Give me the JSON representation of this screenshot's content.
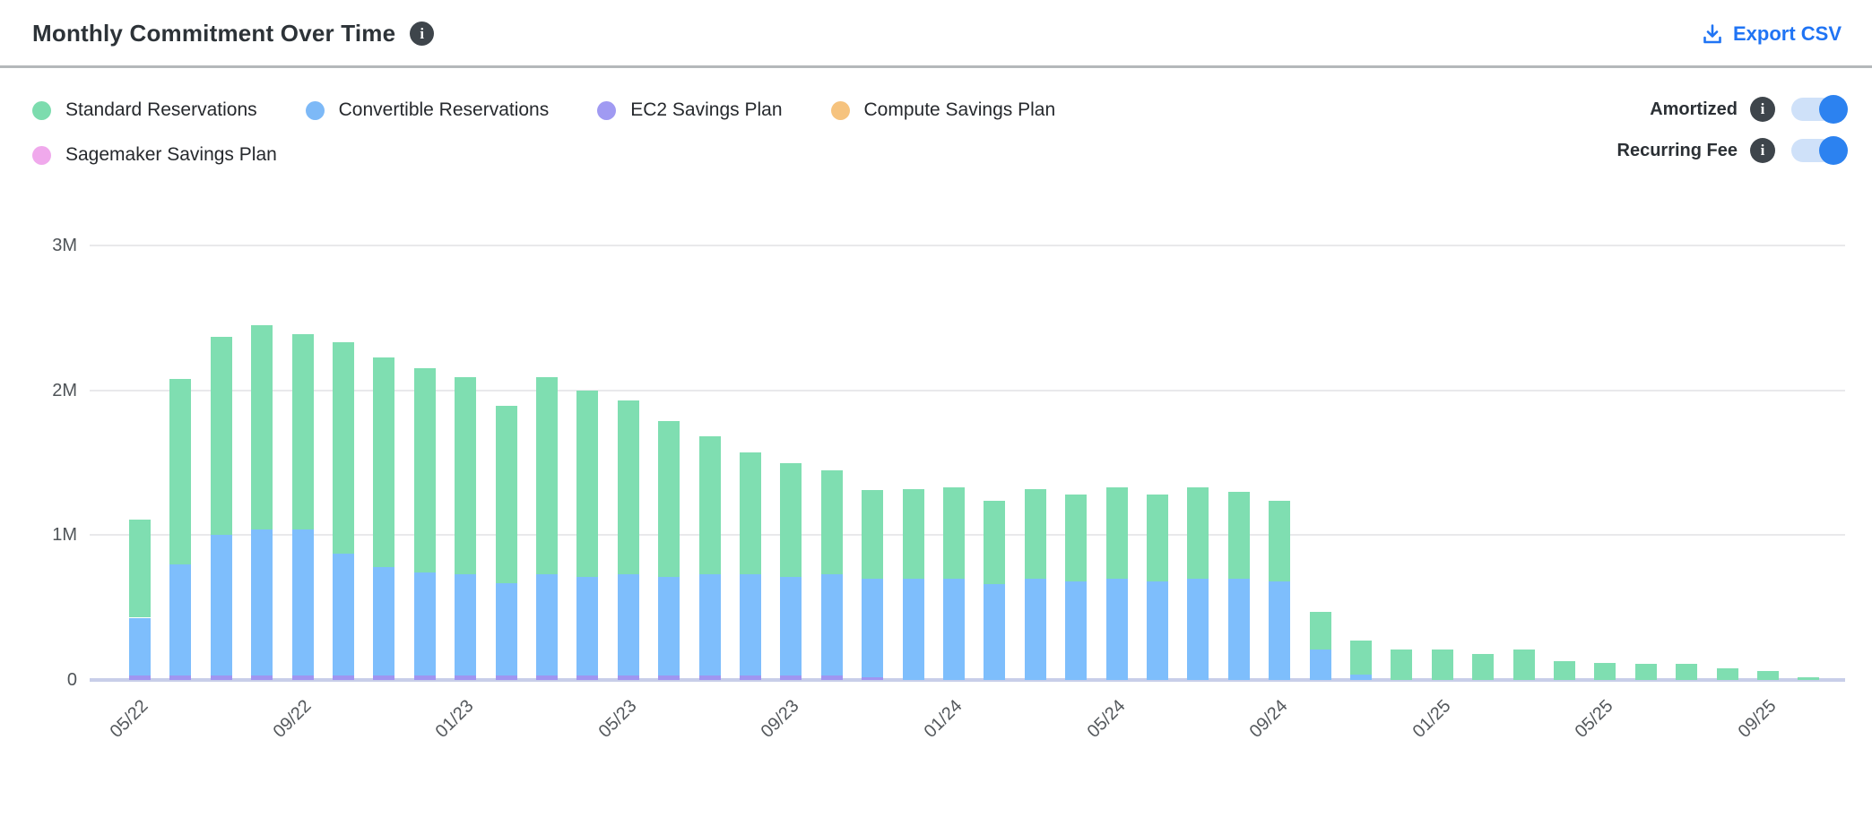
{
  "header": {
    "title": "Monthly Commitment Over Time",
    "export_label": "Export CSV",
    "accent_color": "#2074f4"
  },
  "legend": {
    "items": [
      {
        "id": "standard-reservations",
        "label": "Standard Reservations",
        "color": "#7cdcae"
      },
      {
        "id": "convertible-reservations",
        "label": "Convertible Reservations",
        "color": "#7db9f7"
      },
      {
        "id": "ec2-savings-plan",
        "label": "EC2 Savings Plan",
        "color": "#a09af2"
      },
      {
        "id": "compute-savings-plan",
        "label": "Compute Savings Plan",
        "color": "#f6c37e"
      },
      {
        "id": "sagemaker-savings-plan",
        "label": "Sagemaker Savings Plan",
        "color": "#f0a9ec"
      }
    ]
  },
  "toggles": [
    {
      "id": "amortized",
      "label": "Amortized",
      "on": true
    },
    {
      "id": "recurring-fee",
      "label": "Recurring Fee",
      "on": true
    }
  ],
  "toggle_colors": {
    "track": "#cfe1f9",
    "knob": "#2c82f0"
  },
  "chart_data": {
    "type": "bar",
    "stacked": true,
    "title": "Monthly Commitment Over Time",
    "xlabel": "",
    "ylabel": "",
    "values_unit": "millions",
    "ylim_m": [
      0,
      3
    ],
    "grid": true,
    "y_ticks": [
      {
        "label": "0",
        "value_m": 0
      },
      {
        "label": "1M",
        "value_m": 1
      },
      {
        "label": "2M",
        "value_m": 2
      },
      {
        "label": "3M",
        "value_m": 3
      }
    ],
    "x_label_every": 4,
    "x": [
      "05/22",
      "06/22",
      "07/22",
      "08/22",
      "09/22",
      "10/22",
      "11/22",
      "12/22",
      "01/23",
      "02/23",
      "03/23",
      "04/23",
      "05/23",
      "06/23",
      "07/23",
      "08/23",
      "09/23",
      "10/23",
      "11/23",
      "12/23",
      "01/24",
      "02/24",
      "03/24",
      "04/24",
      "05/24",
      "06/24",
      "07/24",
      "08/24",
      "09/24",
      "10/24",
      "11/24",
      "12/24",
      "01/25",
      "02/25",
      "03/25",
      "04/25",
      "05/25",
      "06/25",
      "07/25",
      "08/25",
      "09/25",
      "10/25"
    ],
    "visible_x_tick_labels": [
      "05/22",
      "09/22",
      "01/23",
      "05/23",
      "09/23",
      "01/24",
      "05/24",
      "09/24",
      "01/25",
      "05/25",
      "09/25"
    ],
    "stack_order_bottom_to_top": [
      4,
      3,
      2,
      1,
      0
    ],
    "series": [
      {
        "name": "Standard Reservations",
        "color": "#7fdeb1",
        "values_m": [
          0.68,
          1.28,
          1.37,
          1.41,
          1.35,
          1.46,
          1.45,
          1.41,
          1.36,
          1.22,
          1.36,
          1.29,
          1.2,
          1.08,
          0.95,
          0.84,
          0.79,
          0.72,
          0.61,
          0.62,
          0.63,
          0.58,
          0.62,
          0.6,
          0.63,
          0.6,
          0.63,
          0.6,
          0.56,
          0.26,
          0.23,
          0.21,
          0.21,
          0.18,
          0.21,
          0.13,
          0.12,
          0.11,
          0.11,
          0.08,
          0.06,
          0.02
        ]
      },
      {
        "name": "Convertible Reservations",
        "color": "#7ebefc",
        "values_m": [
          0.4,
          0.77,
          0.97,
          1.01,
          1.01,
          0.84,
          0.75,
          0.71,
          0.7,
          0.64,
          0.7,
          0.68,
          0.7,
          0.68,
          0.7,
          0.7,
          0.68,
          0.7,
          0.68,
          0.7,
          0.7,
          0.66,
          0.7,
          0.68,
          0.7,
          0.68,
          0.7,
          0.7,
          0.68,
          0.21,
          0.04,
          0,
          0,
          0,
          0,
          0,
          0,
          0,
          0,
          0,
          0,
          0
        ]
      },
      {
        "name": "EC2 Savings Plan",
        "color": "#a095f1",
        "values_m": [
          0.03,
          0.03,
          0.03,
          0.03,
          0.03,
          0.03,
          0.03,
          0.03,
          0.03,
          0.03,
          0.03,
          0.03,
          0.03,
          0.03,
          0.03,
          0.03,
          0.03,
          0.03,
          0.02,
          0,
          0,
          0,
          0,
          0,
          0,
          0,
          0,
          0,
          0,
          0,
          0,
          0,
          0,
          0,
          0,
          0,
          0,
          0,
          0,
          0,
          0,
          0
        ]
      },
      {
        "name": "Compute Savings Plan",
        "color": "#f6c37e",
        "values_m": [
          0,
          0,
          0,
          0,
          0,
          0,
          0,
          0,
          0,
          0,
          0,
          0,
          0,
          0,
          0,
          0,
          0,
          0,
          0,
          0,
          0,
          0,
          0,
          0,
          0,
          0,
          0,
          0,
          0,
          0,
          0,
          0,
          0,
          0,
          0,
          0,
          0,
          0,
          0,
          0,
          0,
          0
        ]
      },
      {
        "name": "Sagemaker Savings Plan",
        "color": "#f0a9ec",
        "values_m": [
          0,
          0,
          0,
          0,
          0,
          0,
          0,
          0,
          0,
          0,
          0,
          0,
          0,
          0,
          0,
          0,
          0,
          0,
          0,
          0,
          0,
          0,
          0,
          0,
          0,
          0,
          0,
          0,
          0,
          0,
          0,
          0,
          0,
          0,
          0,
          0,
          0,
          0,
          0,
          0,
          0,
          0
        ]
      }
    ]
  }
}
